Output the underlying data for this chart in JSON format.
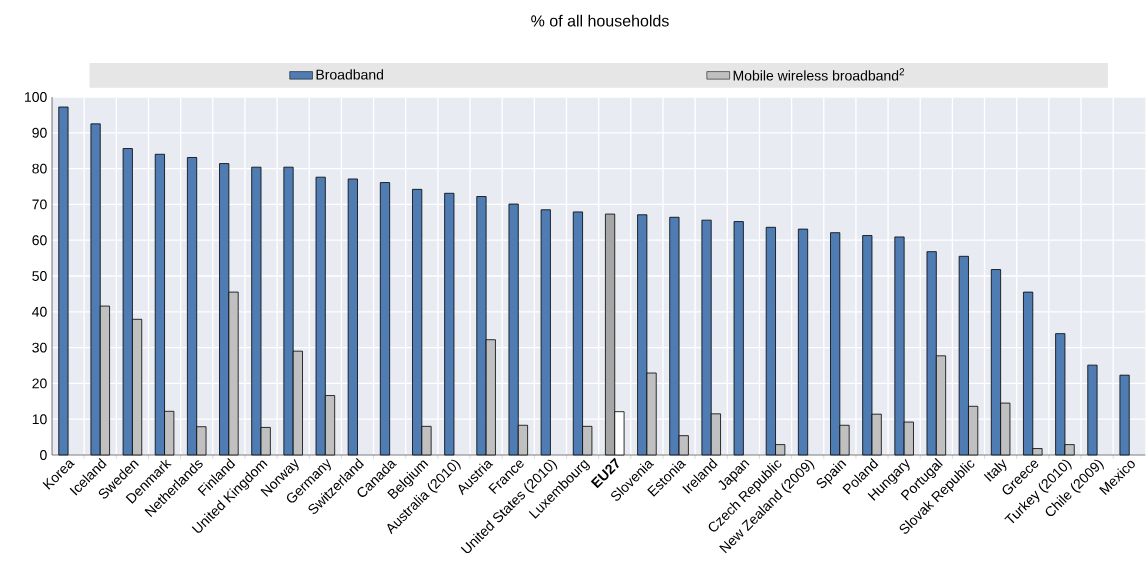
{
  "chart_data": {
    "type": "bar",
    "title": "% of all households",
    "categories": [
      "Korea",
      "Iceland",
      "Sweden",
      "Denmark",
      "Netherlands",
      "Finland",
      "United Kingdom",
      "Norway",
      "Germany",
      "Switzerland",
      "Canada",
      "Belgium",
      "Australia (2010)",
      "Austria",
      "France",
      "United States (2010)",
      "Luxembourg",
      "**EU27**",
      "Slovenia",
      "Estonia",
      "Ireland",
      "Japan",
      "Czech Republic",
      "New Zealand (2009)",
      "Spain",
      "Poland",
      "Hungary",
      "Portugal",
      "Slovak Republic",
      "Italy",
      "Greece",
      "Turkey (2010)",
      "Chile (2009)",
      "Mexico"
    ],
    "series": [
      {
        "name": "Broadband",
        "color": "#4f7db3",
        "colors": [
          "#4f7db3",
          "#4f7db3",
          "#4f7db3",
          "#4f7db3",
          "#4f7db3",
          "#4f7db3",
          "#4f7db3",
          "#4f7db3",
          "#4f7db3",
          "#4f7db3",
          "#4f7db3",
          "#4f7db3",
          "#4f7db3",
          "#4f7db3",
          "#4f7db3",
          "#4f7db3",
          "#4f7db3",
          "#a6a6a6",
          "#4f7db3",
          "#4f7db3",
          "#4f7db3",
          "#4f7db3",
          "#4f7db3",
          "#4f7db3",
          "#4f7db3",
          "#4f7db3",
          "#4f7db3",
          "#4f7db3",
          "#4f7db3",
          "#4f7db3",
          "#4f7db3",
          "#4f7db3",
          "#4f7db3",
          "#4f7db3"
        ],
        "values": [
          97.2,
          92.5,
          85.6,
          84.0,
          83.1,
          81.4,
          80.4,
          80.4,
          77.6,
          77.1,
          76.1,
          74.2,
          73.1,
          72.2,
          70.1,
          68.5,
          67.9,
          67.3,
          67.1,
          66.4,
          65.6,
          65.2,
          63.6,
          63.1,
          62.1,
          61.3,
          60.9,
          56.8,
          55.5,
          51.8,
          45.5,
          33.9,
          25.1,
          22.3
        ]
      },
      {
        "name": "Mobile wireless broadband$^{2}$",
        "color": "#c0c0c0",
        "colors": [
          "#c0c0c0",
          "#c0c0c0",
          "#c0c0c0",
          "#c0c0c0",
          "#c0c0c0",
          "#c0c0c0",
          "#c0c0c0",
          "#c0c0c0",
          "#c0c0c0",
          "#c0c0c0",
          "#c0c0c0",
          "#c0c0c0",
          "#c0c0c0",
          "#c0c0c0",
          "#c0c0c0",
          "#c0c0c0",
          "#c0c0c0",
          "#ffffff",
          "#c0c0c0",
          "#c0c0c0",
          "#c0c0c0",
          "#c0c0c0",
          "#c0c0c0",
          "#c0c0c0",
          "#c0c0c0",
          "#c0c0c0",
          "#c0c0c0",
          "#c0c0c0",
          "#c0c0c0",
          "#c0c0c0",
          "#c0c0c0",
          "#c0c0c0",
          "#c0c0c0",
          "#c0c0c0"
        ],
        "values": [
          null,
          41.6,
          37.9,
          12.2,
          7.9,
          45.5,
          7.7,
          29.0,
          16.6,
          null,
          null,
          8.0,
          null,
          32.2,
          8.3,
          null,
          8.0,
          12.1,
          22.9,
          5.4,
          11.5,
          null,
          2.9,
          null,
          8.3,
          11.4,
          9.2,
          27.7,
          13.6,
          14.5,
          1.8,
          2.9,
          null,
          null
        ]
      }
    ],
    "ylim": [
      0,
      100
    ],
    "yticks": [
      0,
      10,
      20,
      30,
      40,
      50,
      60,
      70,
      80,
      90,
      100
    ],
    "grid": true,
    "legend": "top"
  }
}
